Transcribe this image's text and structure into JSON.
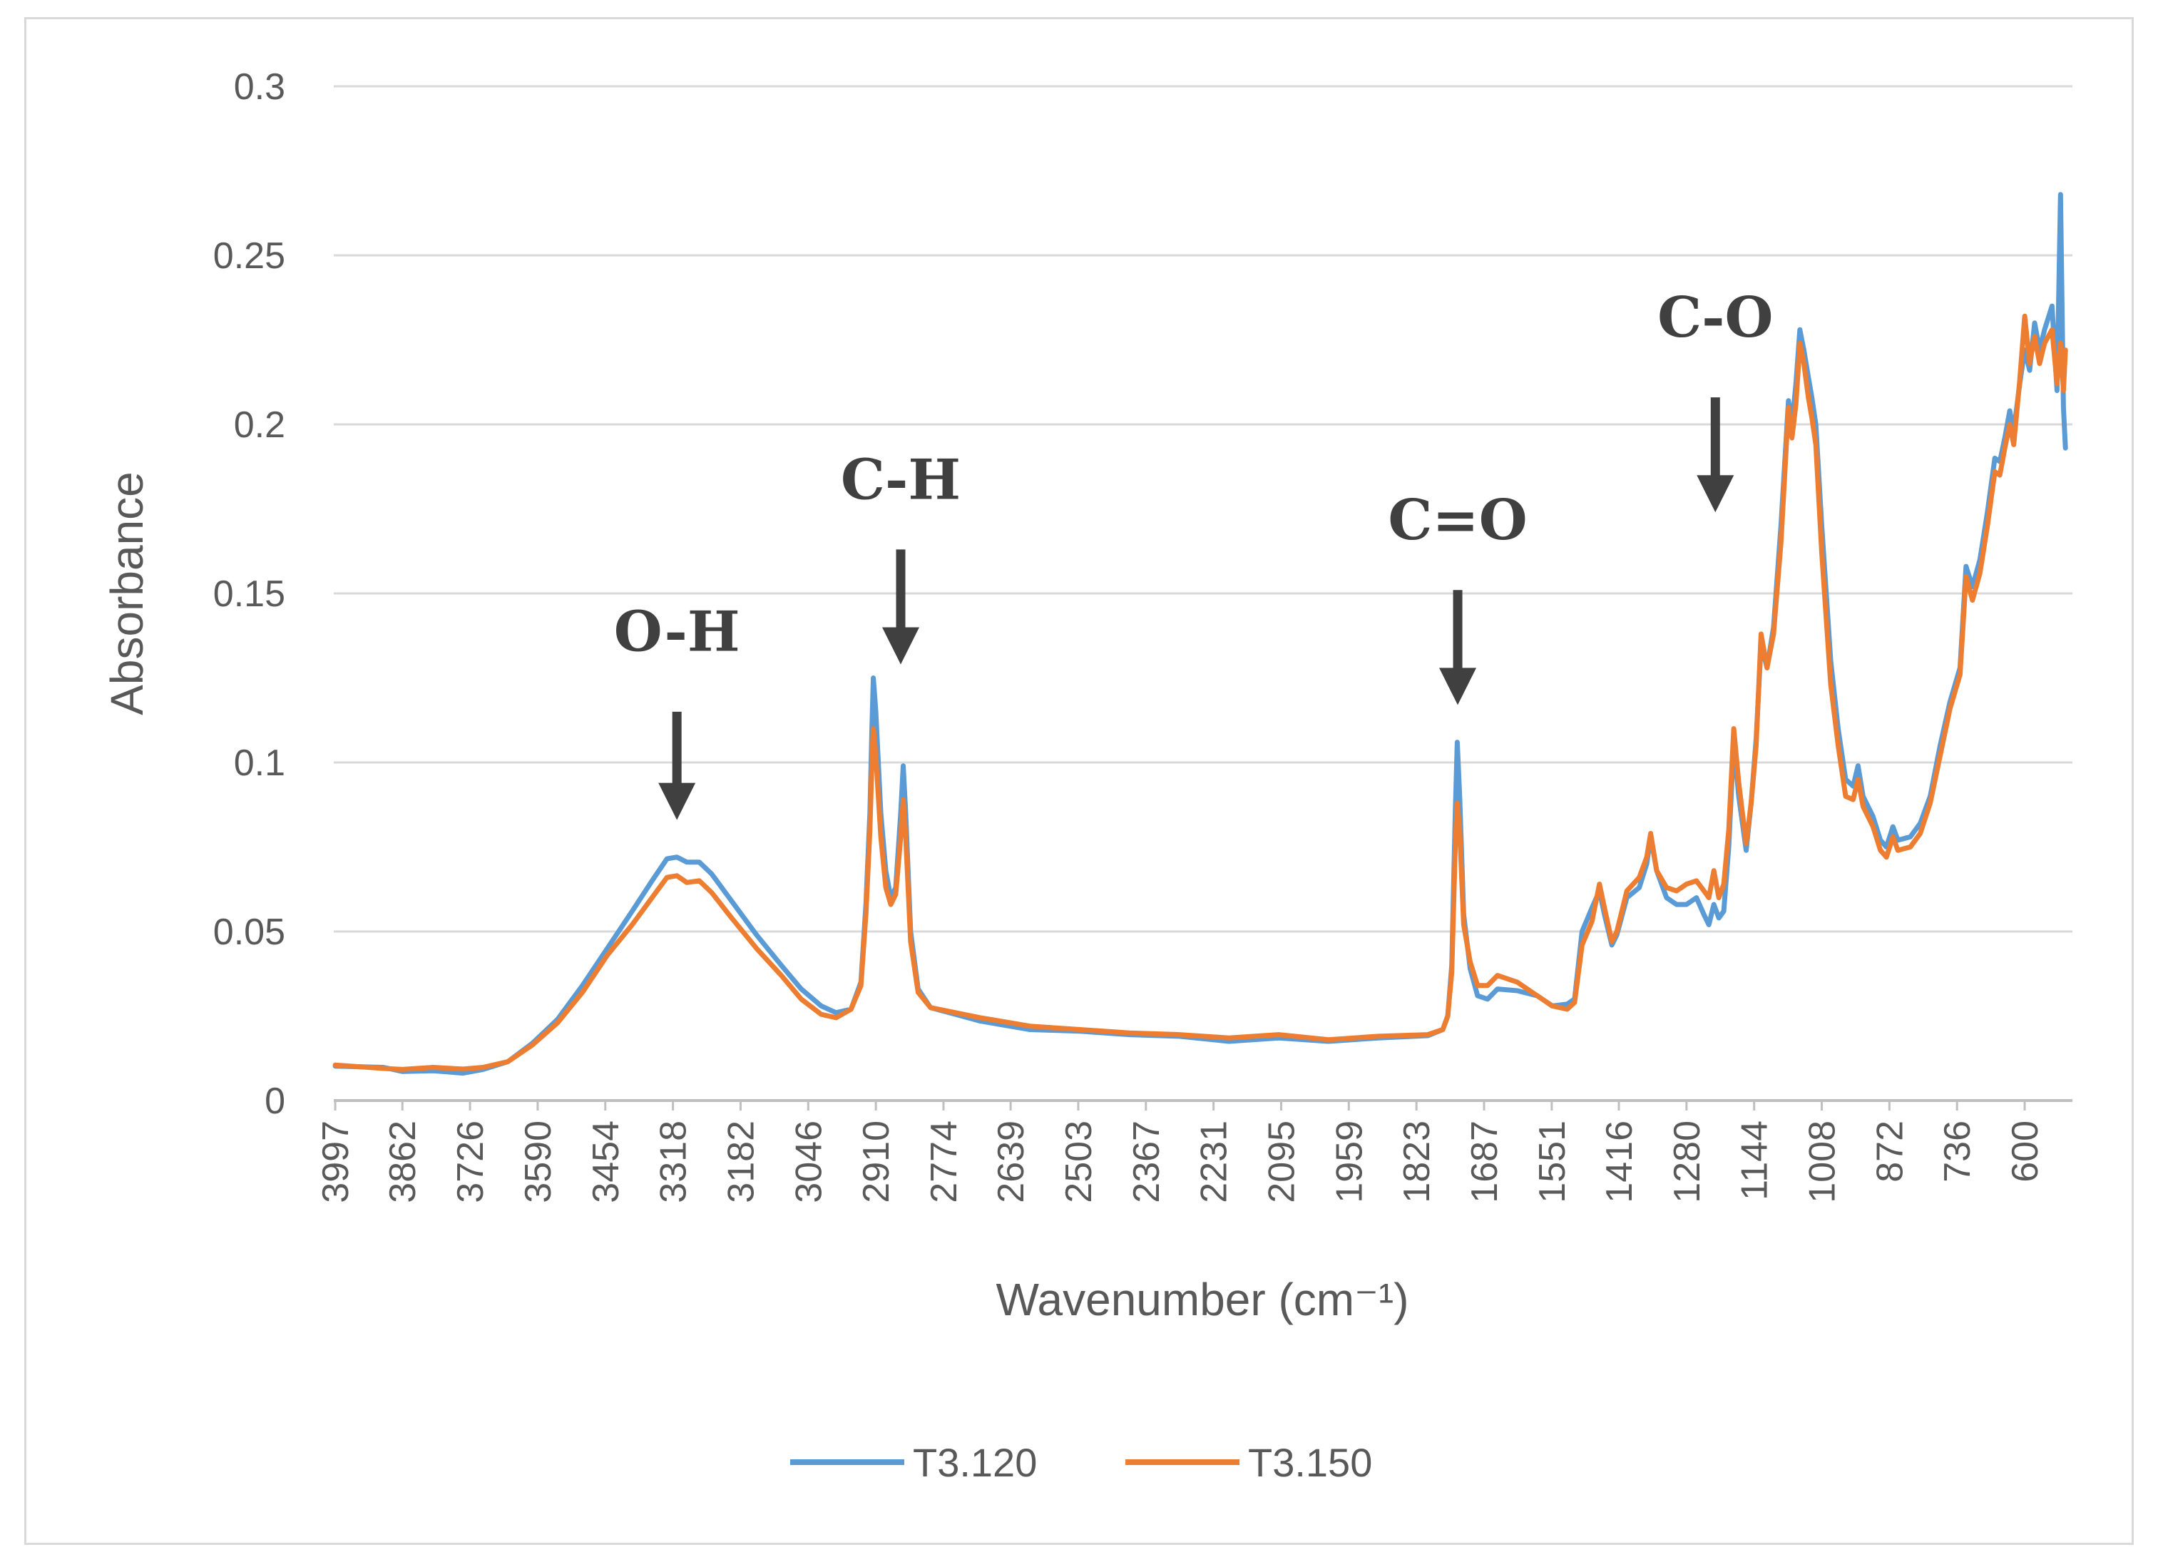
{
  "chart_data": {
    "type": "line",
    "xlabel": "Wavenumber (cm⁻¹)",
    "ylabel": "Absorbance",
    "xlim": [
      4000,
      504
    ],
    "ylim": [
      0,
      0.3
    ],
    "y_ticks": [
      "0",
      "0.05",
      "0.1",
      "0.15",
      "0.2",
      "0.25",
      "0.3"
    ],
    "y_tick_values": [
      0,
      0.05,
      0.1,
      0.15,
      0.2,
      0.25,
      0.3
    ],
    "x_ticks": [
      "3997",
      "3862",
      "3726",
      "3590",
      "3454",
      "3318",
      "3182",
      "3046",
      "2910",
      "2774",
      "2639",
      "2503",
      "2367",
      "2231",
      "2095",
      "1959",
      "1823",
      "1687",
      "1551",
      "1416",
      "1280",
      "1144",
      "1008",
      "872",
      "736",
      "600"
    ],
    "grid": true,
    "legend_position": "bottom",
    "annotations": [
      {
        "label": "O-H",
        "x": 3310,
        "y_text": 0.133,
        "arrow_from": 0.115,
        "arrow_to": 0.083
      },
      {
        "label": "C-H",
        "x": 2860,
        "y_text": 0.178,
        "arrow_from": 0.163,
        "arrow_to": 0.129
      },
      {
        "label": "C=O",
        "x": 1740,
        "y_text": 0.166,
        "arrow_from": 0.151,
        "arrow_to": 0.117
      },
      {
        "label": "C-O",
        "x": 1222,
        "y_text": 0.226,
        "arrow_from": 0.208,
        "arrow_to": 0.174
      }
    ],
    "series": [
      {
        "name": "T3.120",
        "color": "#5b9bd5",
        "points": [
          [
            3997,
            0.0102
          ],
          [
            3900,
            0.0098
          ],
          [
            3862,
            0.0086
          ],
          [
            3800,
            0.0088
          ],
          [
            3740,
            0.0081
          ],
          [
            3700,
            0.0092
          ],
          [
            3650,
            0.0115
          ],
          [
            3600,
            0.017
          ],
          [
            3550,
            0.024
          ],
          [
            3500,
            0.034
          ],
          [
            3450,
            0.045
          ],
          [
            3400,
            0.056
          ],
          [
            3360,
            0.065
          ],
          [
            3330,
            0.0715
          ],
          [
            3310,
            0.072
          ],
          [
            3290,
            0.0705
          ],
          [
            3265,
            0.0705
          ],
          [
            3240,
            0.067
          ],
          [
            3200,
            0.059
          ],
          [
            3150,
            0.049
          ],
          [
            3100,
            0.04
          ],
          [
            3060,
            0.033
          ],
          [
            3020,
            0.028
          ],
          [
            2990,
            0.026
          ],
          [
            2960,
            0.027
          ],
          [
            2940,
            0.035
          ],
          [
            2930,
            0.058
          ],
          [
            2922,
            0.085
          ],
          [
            2918,
            0.11
          ],
          [
            2915,
            0.125
          ],
          [
            2910,
            0.115
          ],
          [
            2900,
            0.085
          ],
          [
            2890,
            0.068
          ],
          [
            2880,
            0.06
          ],
          [
            2870,
            0.063
          ],
          [
            2860,
            0.085
          ],
          [
            2855,
            0.099
          ],
          [
            2850,
            0.085
          ],
          [
            2840,
            0.05
          ],
          [
            2825,
            0.033
          ],
          [
            2800,
            0.0275
          ],
          [
            2750,
            0.0255
          ],
          [
            2700,
            0.0235
          ],
          [
            2600,
            0.021
          ],
          [
            2500,
            0.0205
          ],
          [
            2400,
            0.0195
          ],
          [
            2300,
            0.019
          ],
          [
            2200,
            0.0175
          ],
          [
            2100,
            0.0185
          ],
          [
            2000,
            0.0175
          ],
          [
            1900,
            0.0185
          ],
          [
            1800,
            0.0192
          ],
          [
            1770,
            0.021
          ],
          [
            1760,
            0.025
          ],
          [
            1752,
            0.04
          ],
          [
            1745,
            0.085
          ],
          [
            1741,
            0.106
          ],
          [
            1736,
            0.09
          ],
          [
            1728,
            0.055
          ],
          [
            1715,
            0.039
          ],
          [
            1700,
            0.031
          ],
          [
            1680,
            0.03
          ],
          [
            1660,
            0.033
          ],
          [
            1620,
            0.0325
          ],
          [
            1580,
            0.031
          ],
          [
            1550,
            0.028
          ],
          [
            1520,
            0.0285
          ],
          [
            1505,
            0.03
          ],
          [
            1490,
            0.05
          ],
          [
            1470,
            0.057
          ],
          [
            1455,
            0.062
          ],
          [
            1445,
            0.055
          ],
          [
            1430,
            0.046
          ],
          [
            1420,
            0.049
          ],
          [
            1400,
            0.06
          ],
          [
            1375,
            0.063
          ],
          [
            1360,
            0.07
          ],
          [
            1352,
            0.078
          ],
          [
            1340,
            0.068
          ],
          [
            1320,
            0.06
          ],
          [
            1300,
            0.058
          ],
          [
            1280,
            0.058
          ],
          [
            1260,
            0.06
          ],
          [
            1245,
            0.055
          ],
          [
            1235,
            0.052
          ],
          [
            1225,
            0.058
          ],
          [
            1215,
            0.054
          ],
          [
            1205,
            0.056
          ],
          [
            1195,
            0.075
          ],
          [
            1185,
            0.106
          ],
          [
            1175,
            0.09
          ],
          [
            1160,
            0.074
          ],
          [
            1150,
            0.088
          ],
          [
            1140,
            0.107
          ],
          [
            1130,
            0.135
          ],
          [
            1118,
            0.128
          ],
          [
            1105,
            0.14
          ],
          [
            1090,
            0.17
          ],
          [
            1075,
            0.207
          ],
          [
            1068,
            0.2
          ],
          [
            1060,
            0.212
          ],
          [
            1052,
            0.228
          ],
          [
            1044,
            0.222
          ],
          [
            1035,
            0.214
          ],
          [
            1028,
            0.208
          ],
          [
            1020,
            0.2
          ],
          [
            1008,
            0.17
          ],
          [
            990,
            0.13
          ],
          [
            975,
            0.11
          ],
          [
            960,
            0.095
          ],
          [
            945,
            0.093
          ],
          [
            935,
            0.099
          ],
          [
            925,
            0.09
          ],
          [
            905,
            0.084
          ],
          [
            890,
            0.077
          ],
          [
            878,
            0.075
          ],
          [
            865,
            0.081
          ],
          [
            855,
            0.077
          ],
          [
            830,
            0.078
          ],
          [
            810,
            0.082
          ],
          [
            790,
            0.09
          ],
          [
            770,
            0.105
          ],
          [
            750,
            0.118
          ],
          [
            730,
            0.128
          ],
          [
            718,
            0.158
          ],
          [
            705,
            0.152
          ],
          [
            690,
            0.16
          ],
          [
            675,
            0.174
          ],
          [
            660,
            0.19
          ],
          [
            650,
            0.189
          ],
          [
            640,
            0.196
          ],
          [
            630,
            0.204
          ],
          [
            622,
            0.198
          ],
          [
            610,
            0.212
          ],
          [
            600,
            0.222
          ],
          [
            590,
            0.216
          ],
          [
            580,
            0.23
          ],
          [
            570,
            0.222
          ],
          [
            560,
            0.228
          ],
          [
            545,
            0.235
          ],
          [
            535,
            0.21
          ],
          [
            528,
            0.268
          ],
          [
            522,
            0.205
          ],
          [
            518,
            0.193
          ]
        ]
      },
      {
        "name": "T3.150",
        "color": "#ed7d31",
        "points": [
          [
            3997,
            0.0105
          ],
          [
            3900,
            0.0095
          ],
          [
            3862,
            0.0092
          ],
          [
            3800,
            0.0098
          ],
          [
            3740,
            0.0093
          ],
          [
            3700,
            0.0098
          ],
          [
            3650,
            0.0115
          ],
          [
            3600,
            0.0165
          ],
          [
            3550,
            0.023
          ],
          [
            3500,
            0.032
          ],
          [
            3450,
            0.043
          ],
          [
            3400,
            0.052
          ],
          [
            3360,
            0.06
          ],
          [
            3330,
            0.066
          ],
          [
            3310,
            0.0665
          ],
          [
            3290,
            0.0645
          ],
          [
            3265,
            0.065
          ],
          [
            3240,
            0.0615
          ],
          [
            3200,
            0.054
          ],
          [
            3150,
            0.045
          ],
          [
            3100,
            0.037
          ],
          [
            3060,
            0.03
          ],
          [
            3020,
            0.0255
          ],
          [
            2990,
            0.0245
          ],
          [
            2960,
            0.027
          ],
          [
            2940,
            0.034
          ],
          [
            2930,
            0.055
          ],
          [
            2922,
            0.08
          ],
          [
            2918,
            0.1
          ],
          [
            2915,
            0.11
          ],
          [
            2910,
            0.102
          ],
          [
            2900,
            0.078
          ],
          [
            2890,
            0.063
          ],
          [
            2880,
            0.058
          ],
          [
            2870,
            0.061
          ],
          [
            2860,
            0.078
          ],
          [
            2855,
            0.089
          ],
          [
            2850,
            0.078
          ],
          [
            2840,
            0.047
          ],
          [
            2825,
            0.032
          ],
          [
            2800,
            0.0275
          ],
          [
            2750,
            0.026
          ],
          [
            2700,
            0.0245
          ],
          [
            2600,
            0.022
          ],
          [
            2500,
            0.021
          ],
          [
            2400,
            0.02
          ],
          [
            2300,
            0.0195
          ],
          [
            2200,
            0.0185
          ],
          [
            2100,
            0.0195
          ],
          [
            2000,
            0.018
          ],
          [
            1900,
            0.019
          ],
          [
            1800,
            0.0195
          ],
          [
            1770,
            0.021
          ],
          [
            1760,
            0.025
          ],
          [
            1752,
            0.038
          ],
          [
            1745,
            0.075
          ],
          [
            1741,
            0.088
          ],
          [
            1736,
            0.08
          ],
          [
            1728,
            0.052
          ],
          [
            1715,
            0.041
          ],
          [
            1700,
            0.034
          ],
          [
            1680,
            0.034
          ],
          [
            1660,
            0.037
          ],
          [
            1620,
            0.035
          ],
          [
            1580,
            0.031
          ],
          [
            1550,
            0.028
          ],
          [
            1520,
            0.027
          ],
          [
            1505,
            0.029
          ],
          [
            1490,
            0.046
          ],
          [
            1470,
            0.053
          ],
          [
            1455,
            0.064
          ],
          [
            1445,
            0.057
          ],
          [
            1430,
            0.047
          ],
          [
            1420,
            0.05
          ],
          [
            1400,
            0.062
          ],
          [
            1375,
            0.066
          ],
          [
            1360,
            0.072
          ],
          [
            1352,
            0.079
          ],
          [
            1340,
            0.068
          ],
          [
            1320,
            0.063
          ],
          [
            1300,
            0.062
          ],
          [
            1280,
            0.064
          ],
          [
            1260,
            0.065
          ],
          [
            1245,
            0.062
          ],
          [
            1235,
            0.06
          ],
          [
            1225,
            0.068
          ],
          [
            1215,
            0.06
          ],
          [
            1205,
            0.064
          ],
          [
            1195,
            0.08
          ],
          [
            1185,
            0.11
          ],
          [
            1175,
            0.094
          ],
          [
            1160,
            0.076
          ],
          [
            1150,
            0.088
          ],
          [
            1140,
            0.105
          ],
          [
            1130,
            0.138
          ],
          [
            1118,
            0.128
          ],
          [
            1105,
            0.138
          ],
          [
            1090,
            0.165
          ],
          [
            1075,
            0.205
          ],
          [
            1068,
            0.196
          ],
          [
            1060,
            0.206
          ],
          [
            1052,
            0.224
          ],
          [
            1044,
            0.218
          ],
          [
            1035,
            0.208
          ],
          [
            1028,
            0.202
          ],
          [
            1020,
            0.194
          ],
          [
            1008,
            0.162
          ],
          [
            990,
            0.123
          ],
          [
            975,
            0.105
          ],
          [
            960,
            0.09
          ],
          [
            945,
            0.089
          ],
          [
            935,
            0.095
          ],
          [
            925,
            0.087
          ],
          [
            905,
            0.081
          ],
          [
            890,
            0.074
          ],
          [
            878,
            0.072
          ],
          [
            865,
            0.078
          ],
          [
            855,
            0.074
          ],
          [
            830,
            0.075
          ],
          [
            810,
            0.079
          ],
          [
            790,
            0.088
          ],
          [
            770,
            0.102
          ],
          [
            750,
            0.116
          ],
          [
            730,
            0.126
          ],
          [
            718,
            0.155
          ],
          [
            705,
            0.148
          ],
          [
            690,
            0.156
          ],
          [
            675,
            0.17
          ],
          [
            660,
            0.186
          ],
          [
            650,
            0.185
          ],
          [
            640,
            0.193
          ],
          [
            630,
            0.2
          ],
          [
            622,
            0.194
          ],
          [
            610,
            0.213
          ],
          [
            600,
            0.232
          ],
          [
            590,
            0.218
          ],
          [
            580,
            0.226
          ],
          [
            570,
            0.218
          ],
          [
            560,
            0.224
          ],
          [
            545,
            0.228
          ],
          [
            535,
            0.212
          ],
          [
            528,
            0.224
          ],
          [
            522,
            0.21
          ],
          [
            518,
            0.222
          ]
        ]
      }
    ]
  }
}
